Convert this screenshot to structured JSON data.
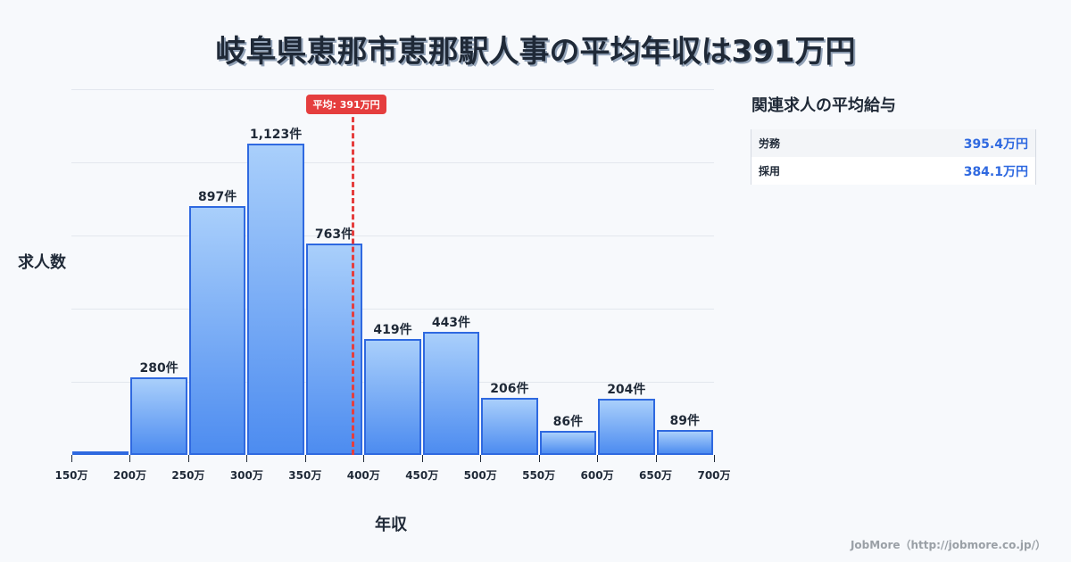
{
  "title": "岐阜県恵那市恵那駅人事の平均年収は391万円",
  "chart_data": {
    "type": "bar",
    "title": "岐阜県恵那市恵那駅人事の平均年収は391万円",
    "xlabel": "年収",
    "ylabel": "求人数",
    "x_ticks": [
      "150万",
      "200万",
      "250万",
      "300万",
      "350万",
      "400万",
      "450万",
      "500万",
      "550万",
      "600万",
      "650万",
      "700万"
    ],
    "categories": [
      "150-200万",
      "200-250万",
      "250-300万",
      "300-350万",
      "350-400万",
      "400-450万",
      "450-500万",
      "500-550万",
      "550-600万",
      "600-650万",
      "650-700万"
    ],
    "values": [
      12,
      280,
      897,
      1123,
      763,
      419,
      443,
      206,
      86,
      204,
      89
    ],
    "labels": [
      "",
      "280件",
      "897件",
      "1,123件",
      "763件",
      "419件",
      "443件",
      "206件",
      "86件",
      "204件",
      "89件"
    ],
    "mean": {
      "value": 391,
      "label": "平均: 391万円"
    },
    "xlim": [
      150,
      700
    ],
    "grid": true,
    "bar_color": "#4d8cf0",
    "mean_color": "#e53e3e"
  },
  "axis": {
    "ylabel": "求人数",
    "xlabel": "年収"
  },
  "mean_badge": "平均: 391万円",
  "side_panel": {
    "title": "関連求人の平均給与",
    "rows": [
      {
        "label": "労務",
        "value": "395.4万円"
      },
      {
        "label": "採用",
        "value": "384.1万円"
      }
    ]
  },
  "credit": "JobMore（http://jobmore.co.jp/）"
}
